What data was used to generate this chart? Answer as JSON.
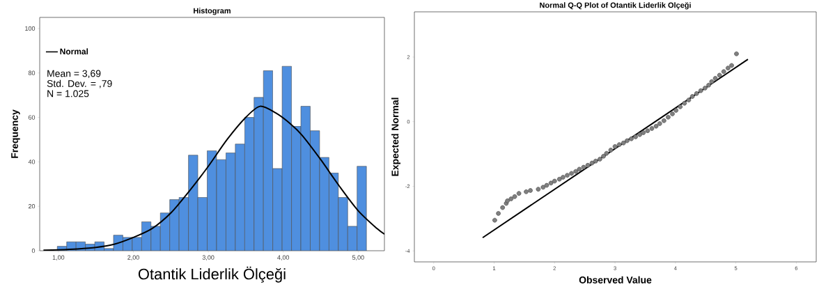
{
  "chart_data": [
    {
      "type": "histogram",
      "title": "Histogram",
      "xlabel": "Otantik Liderlik Ölçeği",
      "ylabel": "Frequency",
      "bins": [
        0.985,
        1.11,
        1.235,
        1.36,
        1.485,
        1.61,
        1.735,
        1.86,
        1.985,
        2.11,
        2.235,
        2.36,
        2.485,
        2.61,
        2.735,
        2.86,
        2.985,
        3.11,
        3.235,
        3.36,
        3.485,
        3.61,
        3.735,
        3.86,
        3.985,
        4.11,
        4.235,
        4.36,
        4.485,
        4.61,
        4.735,
        4.86,
        4.985,
        5.11
      ],
      "values": [
        2,
        4,
        4,
        3,
        4,
        1,
        7,
        6,
        6,
        13,
        11,
        17,
        23,
        24,
        43,
        24,
        45,
        41,
        44,
        48,
        60,
        69,
        81,
        37,
        83,
        56,
        65,
        54,
        42,
        35,
        24,
        11,
        38
      ],
      "color": "#4f8fdf",
      "series": [
        {
          "name": "Normal",
          "type": "line",
          "color": "#000000",
          "x": [
            0.8,
            1.0,
            1.25,
            1.5,
            1.75,
            2.0,
            2.25,
            2.5,
            2.75,
            3.0,
            3.25,
            3.5,
            3.69,
            3.9,
            4.1,
            4.25,
            4.5,
            4.75,
            5.0,
            5.25,
            5.35
          ],
          "values": [
            0.2,
            0.4,
            0.8,
            1.5,
            3,
            6,
            10,
            17,
            27,
            38,
            50,
            60,
            65,
            62,
            57,
            52,
            41,
            29,
            18,
            10,
            7.5
          ]
        }
      ],
      "xlim": [
        0.75,
        5.35
      ],
      "xticks": [
        {
          "value": 1,
          "label": "1,00"
        },
        {
          "value": 2,
          "label": "2,00"
        },
        {
          "value": 3,
          "label": "3,00"
        },
        {
          "value": 4,
          "label": "4,00"
        },
        {
          "value": 5,
          "label": "5,00"
        }
      ],
      "ylim": [
        0,
        105
      ],
      "yticks": [
        0,
        20,
        40,
        60,
        80,
        100
      ],
      "legend": "top left",
      "annotations": [
        "Mean = 3,69",
        "Std. Dev. = ,79",
        "N = 1.025"
      ]
    },
    {
      "type": "scatter",
      "title": "Normal Q-Q Plot of Otantik Liderlik Olçeği",
      "xlabel": "Observed Value",
      "ylabel": "Expected Normal",
      "series": [
        {
          "type": "scatter",
          "color": "#808080",
          "marker": "circle",
          "x": [
            1.01,
            1.07,
            1.14,
            1.2,
            1.22,
            1.28,
            1.34,
            1.41,
            1.53,
            1.6,
            1.73,
            1.81,
            1.87,
            1.94,
            2.0,
            2.08,
            2.14,
            2.21,
            2.28,
            2.35,
            2.41,
            2.48,
            2.55,
            2.62,
            2.68,
            2.75,
            2.81,
            2.86,
            2.93,
            3.0,
            3.07,
            3.14,
            3.2,
            3.27,
            3.34,
            3.41,
            3.47,
            3.54,
            3.61,
            3.68,
            3.74,
            3.81,
            3.88,
            3.95,
            4.01,
            4.08,
            4.15,
            4.22,
            4.28,
            4.35,
            4.42,
            4.49,
            4.55,
            4.6,
            4.66,
            4.73,
            4.8,
            4.87,
            4.93,
            5.01
          ],
          "values": [
            -3.05,
            -2.84,
            -2.66,
            -2.53,
            -2.45,
            -2.39,
            -2.32,
            -2.22,
            -2.17,
            -2.13,
            -2.09,
            -2.03,
            -1.97,
            -1.9,
            -1.84,
            -1.78,
            -1.72,
            -1.66,
            -1.6,
            -1.54,
            -1.47,
            -1.41,
            -1.35,
            -1.28,
            -1.22,
            -1.16,
            -1.07,
            -0.98,
            -0.88,
            -0.77,
            -0.71,
            -0.66,
            -0.59,
            -0.53,
            -0.47,
            -0.4,
            -0.34,
            -0.28,
            -0.21,
            -0.14,
            -0.06,
            0.03,
            0.14,
            0.24,
            0.35,
            0.46,
            0.57,
            0.67,
            0.78,
            0.87,
            0.96,
            1.04,
            1.13,
            1.24,
            1.34,
            1.44,
            1.55,
            1.66,
            1.74,
            2.1
          ]
        },
        {
          "type": "line",
          "color": "#000000",
          "x": [
            0.81,
            5.2
          ],
          "values": [
            -3.59,
            1.93
          ]
        }
      ],
      "xlim": [
        -0.32,
        6.33
      ],
      "xticks": [
        0,
        1,
        2,
        3,
        4,
        5,
        6
      ],
      "ylim": [
        -4.34,
        3.4
      ],
      "yticks": [
        -4,
        -2,
        0,
        2
      ]
    }
  ]
}
